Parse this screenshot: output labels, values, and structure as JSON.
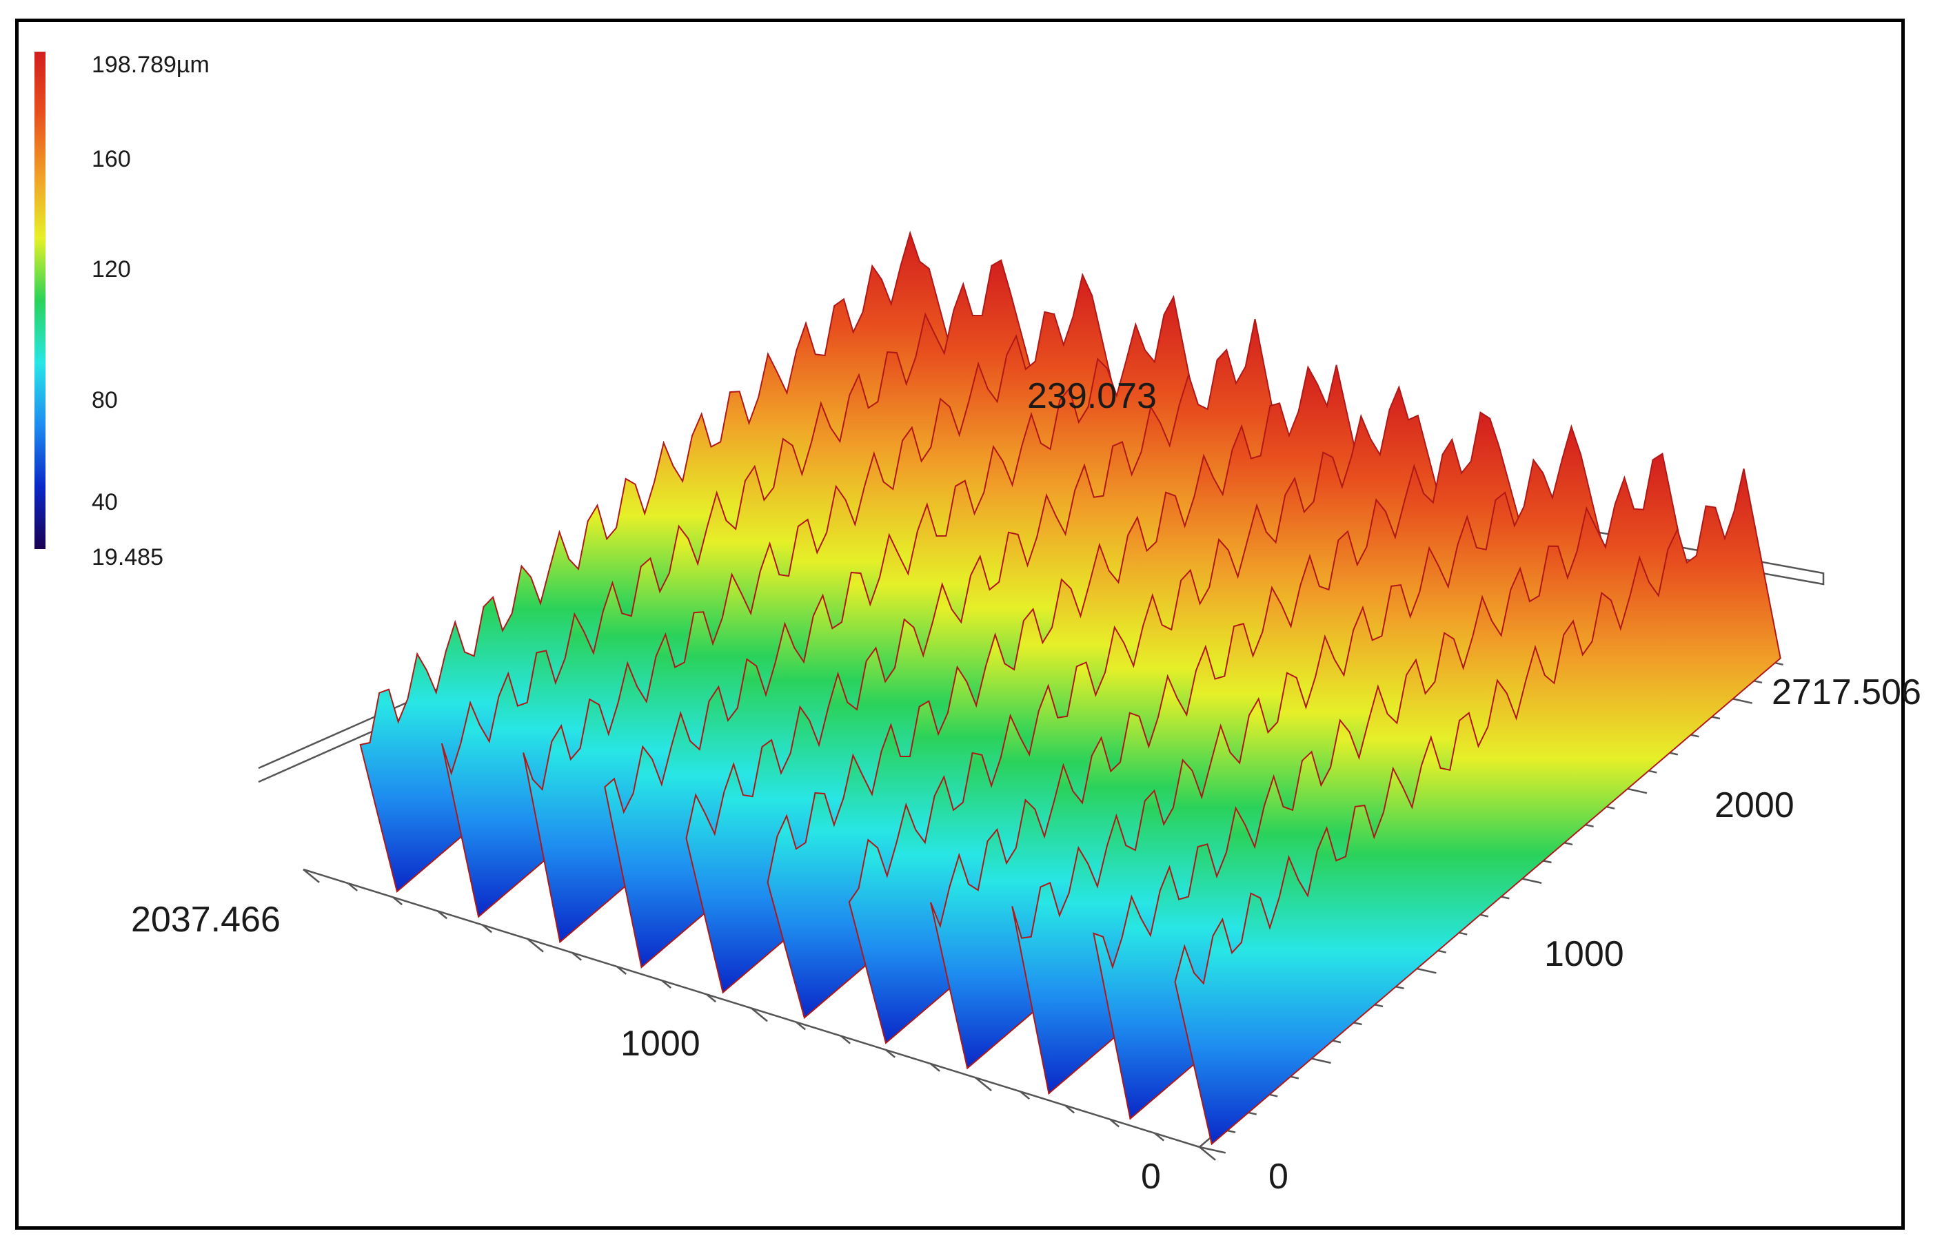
{
  "chart_data": {
    "type": "surface3d",
    "title": "",
    "colorbar": {
      "unit": "µm",
      "max_label": "198.789µm",
      "min_label": "19.485",
      "tick_labels": [
        "160",
        "120",
        "80",
        "40"
      ],
      "ticks": [
        160,
        120,
        80,
        40
      ],
      "range": [
        19.485,
        198.789
      ],
      "colors": [
        "#1a0050",
        "#0a28c8",
        "#1e8cf0",
        "#28e6e6",
        "#2ad25a",
        "#e6f028",
        "#f0a028",
        "#e8501e",
        "#d21e1e"
      ]
    },
    "z_axis": {
      "max_label": "239.073",
      "max": 239.073
    },
    "x_axis": {
      "range": [
        0,
        2037.466
      ],
      "tick_labels": [
        "0",
        "1000",
        "2037.466"
      ]
    },
    "y_axis": {
      "range": [
        0,
        2717.506
      ],
      "tick_labels": [
        "0",
        "1000",
        "2000",
        "2717.506"
      ]
    },
    "ridges": {
      "count": 11,
      "peak": 198.789,
      "valley": 19.485
    }
  }
}
